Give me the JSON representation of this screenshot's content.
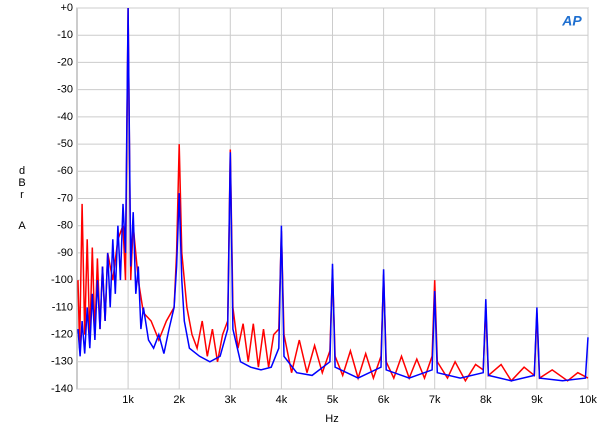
{
  "chart_data": {
    "type": "line",
    "xlabel": "Hz",
    "ylabel_lines": [
      "dBr",
      "A"
    ],
    "logo": "AP",
    "xlim": [
      0,
      10000
    ],
    "ylim": [
      -140,
      0
    ],
    "grid": true,
    "xticks": [
      {
        "value": 1000,
        "label": "1k"
      },
      {
        "value": 2000,
        "label": "2k"
      },
      {
        "value": 3000,
        "label": "3k"
      },
      {
        "value": 4000,
        "label": "4k"
      },
      {
        "value": 5000,
        "label": "5k"
      },
      {
        "value": 6000,
        "label": "6k"
      },
      {
        "value": 7000,
        "label": "7k"
      },
      {
        "value": 8000,
        "label": "8k"
      },
      {
        "value": 9000,
        "label": "9k"
      },
      {
        "value": 10000,
        "label": "10k"
      }
    ],
    "yticks": [
      {
        "value": 0,
        "label": "+0"
      },
      -10,
      -20,
      -30,
      -40,
      -50,
      -60,
      -70,
      -80,
      -90,
      -100,
      -110,
      -120,
      -130,
      -140
    ],
    "series": [
      {
        "color": "#ff0000",
        "x": [
          20,
          50,
          100,
          150,
          200,
          250,
          300,
          350,
          400,
          450,
          500,
          550,
          600,
          700,
          800,
          900,
          950,
          1000,
          1050,
          1100,
          1200,
          1300,
          1450,
          1600,
          1750,
          1900,
          1950,
          2000,
          2050,
          2150,
          2250,
          2350,
          2450,
          2550,
          2650,
          2750,
          2850,
          2950,
          3000,
          3050,
          3150,
          3250,
          3350,
          3450,
          3550,
          3650,
          3750,
          3850,
          3950,
          4000,
          4050,
          4200,
          4350,
          4500,
          4650,
          4800,
          4950,
          5000,
          5050,
          5200,
          5350,
          5500,
          5650,
          5800,
          5950,
          6000,
          6050,
          6200,
          6350,
          6500,
          6650,
          6800,
          6950,
          7000,
          7050,
          7250,
          7400,
          7600,
          7800,
          7950,
          8000,
          8050,
          8300,
          8500,
          8750,
          8950,
          9000,
          9050,
          9300,
          9600,
          9800,
          10000
        ],
        "values": [
          -100,
          -125,
          -72,
          -120,
          -85,
          -122,
          -88,
          -120,
          -92,
          -118,
          -95,
          -115,
          -90,
          -100,
          -85,
          -80,
          -100,
          0,
          -100,
          -80,
          -100,
          -112,
          -115,
          -122,
          -115,
          -110,
          -90,
          -50,
          -90,
          -110,
          -120,
          -125,
          -115,
          -128,
          -118,
          -130,
          -120,
          -115,
          -52,
          -110,
          -125,
          -116,
          -130,
          -116,
          -132,
          -118,
          -132,
          -120,
          -118,
          -82,
          -120,
          -134,
          -122,
          -134,
          -124,
          -134,
          -126,
          -96,
          -128,
          -135,
          -126,
          -136,
          -127,
          -136,
          -128,
          -98,
          -130,
          -136,
          -128,
          -136,
          -129,
          -136,
          -128,
          -100,
          -130,
          -136,
          -130,
          -137,
          -131,
          -133,
          -110,
          -135,
          -131,
          -137,
          -132,
          -135,
          -112,
          -136,
          -133,
          -137,
          -134,
          -136
        ]
      },
      {
        "color": "#0000ff",
        "x": [
          20,
          60,
          100,
          150,
          200,
          250,
          300,
          350,
          400,
          450,
          500,
          550,
          600,
          650,
          700,
          750,
          800,
          850,
          900,
          950,
          1000,
          1050,
          1100,
          1150,
          1200,
          1250,
          1300,
          1400,
          1500,
          1600,
          1700,
          1800,
          1900,
          1950,
          2000,
          2050,
          2100,
          2200,
          2400,
          2600,
          2800,
          2950,
          3000,
          3050,
          3200,
          3400,
          3600,
          3800,
          3950,
          4000,
          4050,
          4300,
          4600,
          4950,
          5000,
          5050,
          5500,
          5950,
          6000,
          6050,
          6500,
          6950,
          7000,
          7050,
          7500,
          7950,
          8000,
          8050,
          8500,
          8950,
          9000,
          9050,
          9500,
          9950,
          10000
        ],
        "values": [
          -118,
          -128,
          -115,
          -127,
          -110,
          -125,
          -105,
          -122,
          -100,
          -118,
          -95,
          -115,
          -90,
          -110,
          -85,
          -105,
          -80,
          -100,
          -72,
          -90,
          0,
          -95,
          -75,
          -105,
          -95,
          -118,
          -110,
          -122,
          -125,
          -120,
          -127,
          -118,
          -110,
          -95,
          -68,
          -100,
          -115,
          -125,
          -128,
          -130,
          -128,
          -118,
          -53,
          -118,
          -130,
          -132,
          -133,
          -132,
          -125,
          -80,
          -128,
          -134,
          -135,
          -130,
          -94,
          -132,
          -136,
          -132,
          -96,
          -133,
          -136,
          -133,
          -104,
          -134,
          -136,
          -134,
          -107,
          -135,
          -137,
          -135,
          -110,
          -136,
          -137,
          -136,
          -121
        ]
      }
    ]
  }
}
